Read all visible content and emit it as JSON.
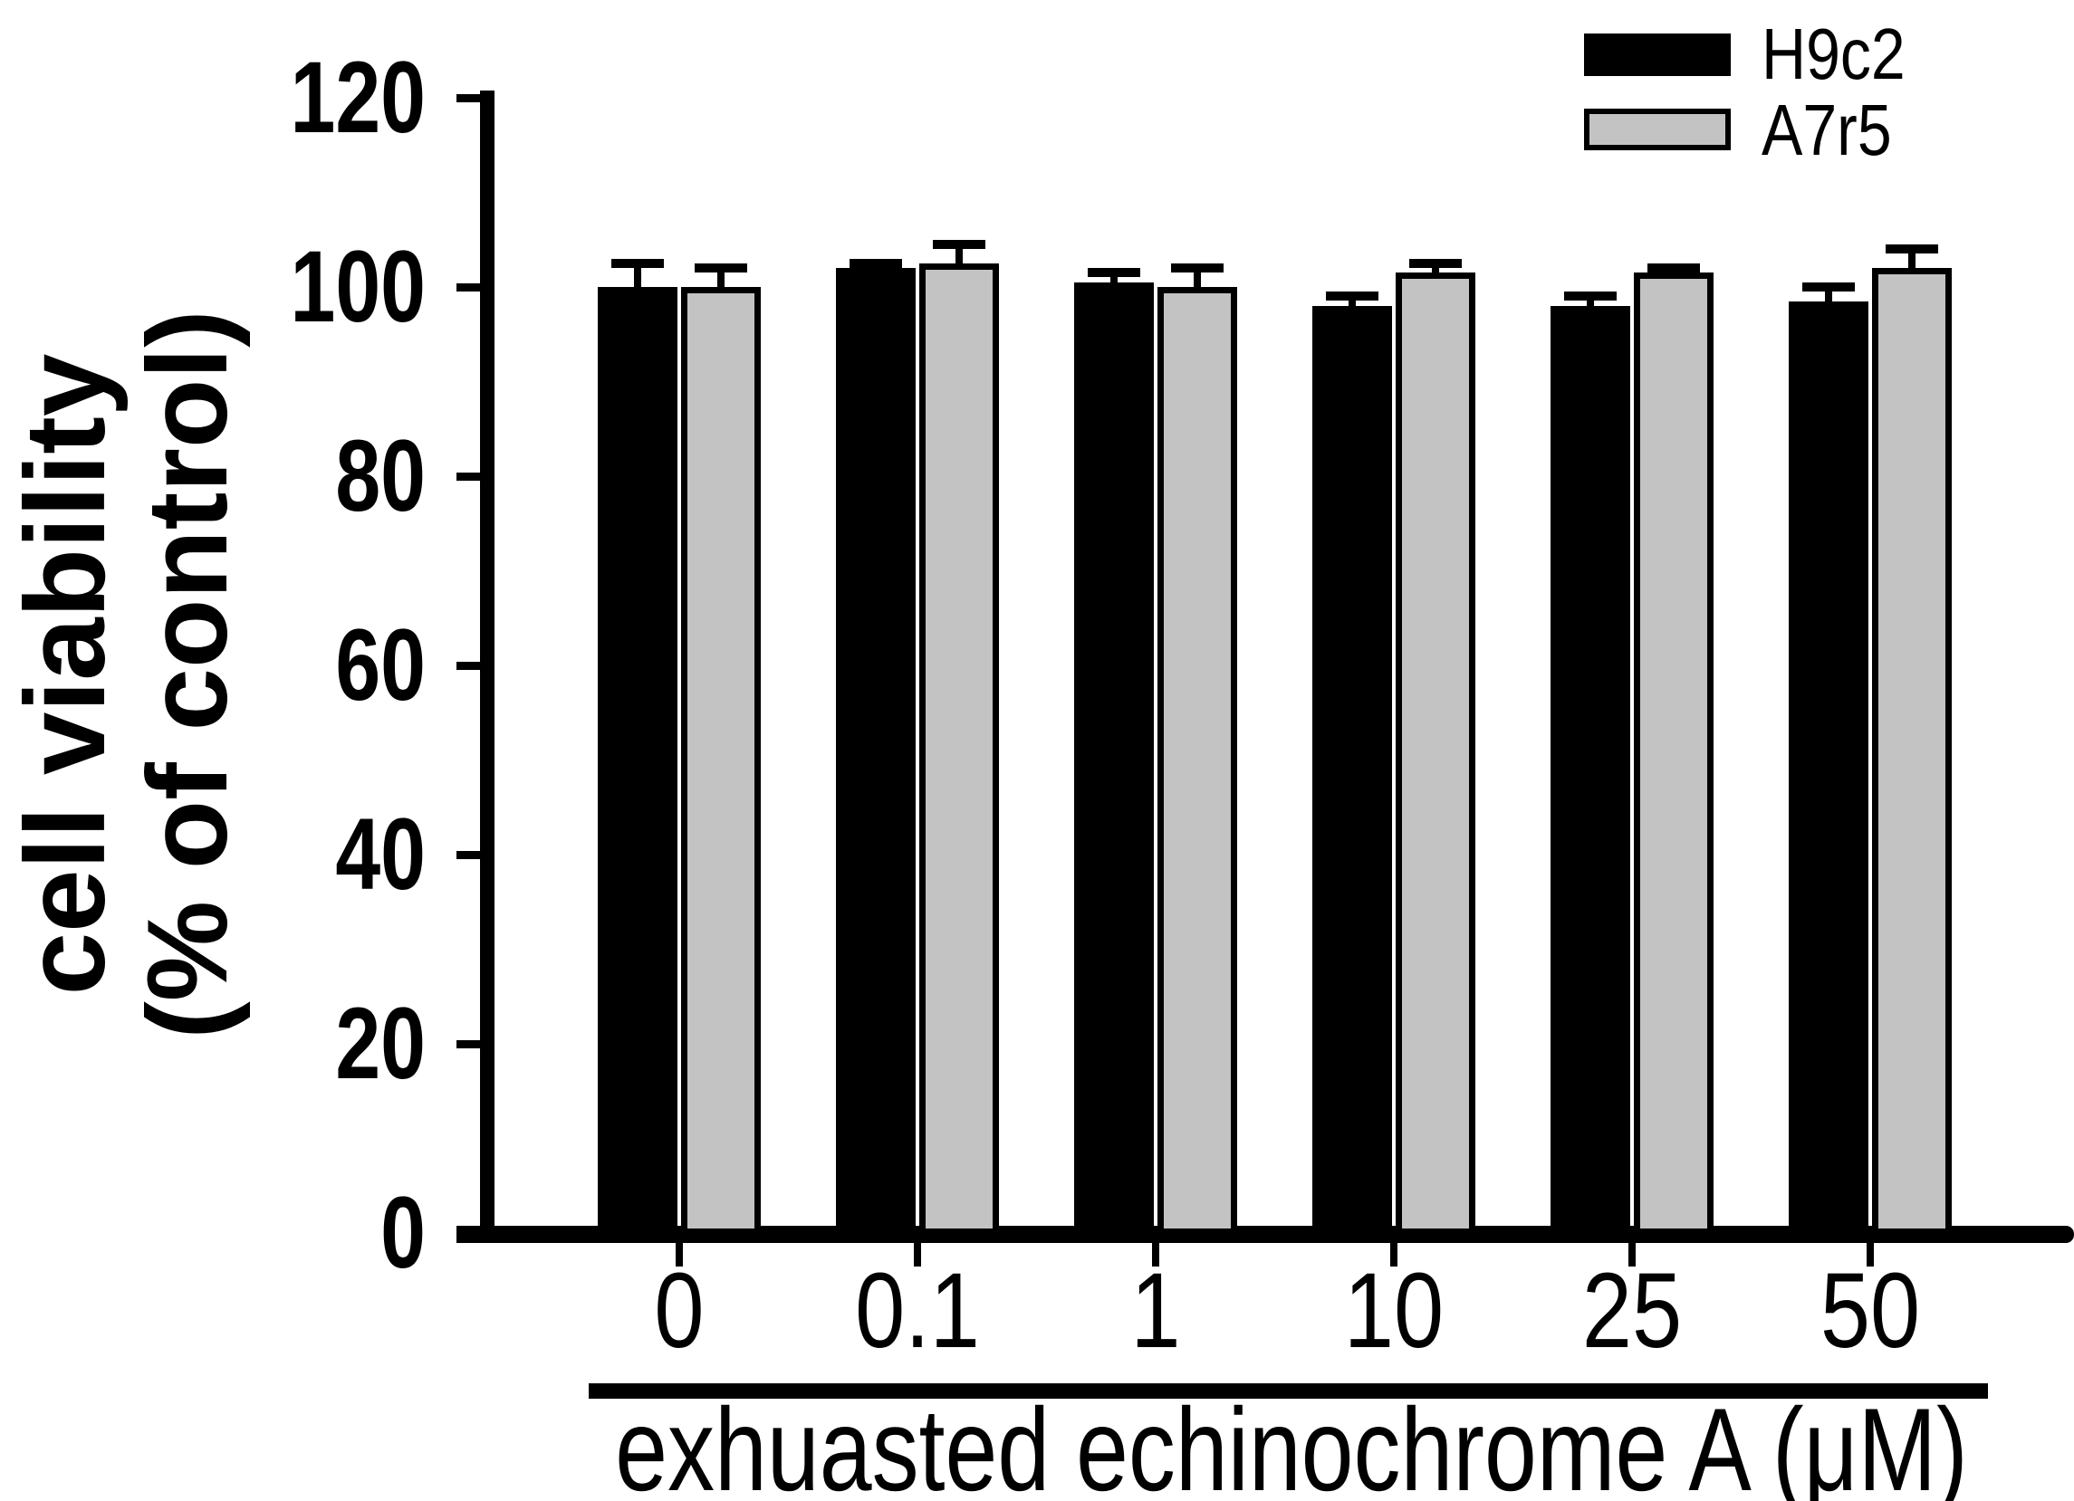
{
  "figure": {
    "background_color": "#ffffff",
    "axis_color": "#000000"
  },
  "chart_data": {
    "type": "bar",
    "title": "",
    "categories": [
      "0",
      "0.1",
      "1",
      "10",
      "25",
      "50"
    ],
    "series": [
      {
        "name": "H9c2",
        "color": "#000000",
        "values": [
          100,
          102,
          100.5,
          98,
          98,
          98.5
        ],
        "errors": [
          3,
          1,
          1.5,
          1.5,
          1.5,
          2
        ]
      },
      {
        "name": "A7r5",
        "color": "#c3c3c3",
        "values": [
          100,
          102.5,
          100,
          101.5,
          101.5,
          102
        ],
        "errors": [
          2.5,
          2.5,
          2.5,
          1.5,
          1,
          2.5
        ]
      }
    ],
    "error_bars": "upper-only",
    "xlabel": "exhuasted echinochrome A (μM)",
    "ylabel_line1": "cell viability",
    "ylabel_line2": "(% of control)",
    "ylim": [
      0,
      120
    ],
    "yticks": [
      0,
      20,
      40,
      60,
      80,
      100,
      120
    ],
    "grid": false,
    "legend_position": "top-right"
  }
}
